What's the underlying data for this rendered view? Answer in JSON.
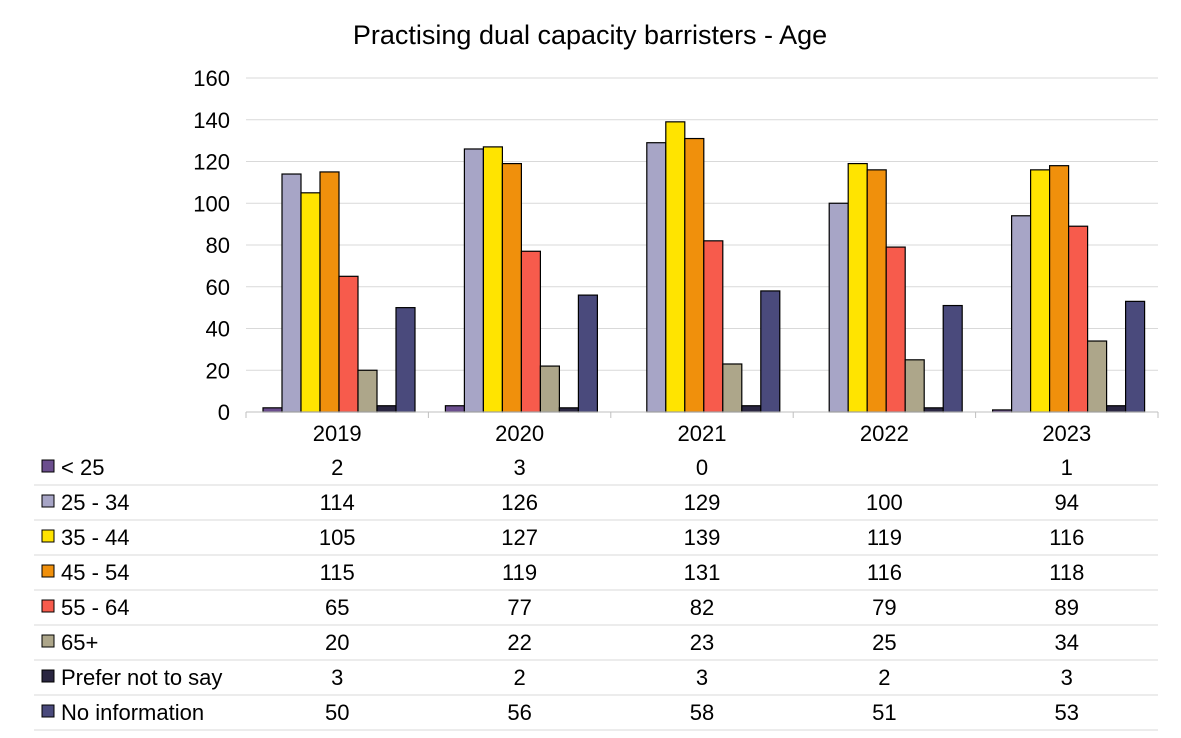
{
  "chart_data": {
    "type": "bar",
    "title": "Practising dual capacity barristers - Age",
    "categories": [
      "2019",
      "2020",
      "2021",
      "2022",
      "2023"
    ],
    "ylim": [
      0,
      160
    ],
    "yticks": [
      0,
      20,
      40,
      60,
      80,
      100,
      120,
      140,
      160
    ],
    "grid": true,
    "legend": "data-table-below",
    "series": [
      {
        "name": "< 25",
        "color": "#6B4E8E",
        "values": [
          2,
          3,
          0,
          null,
          1
        ],
        "labels": [
          "2",
          "3",
          "0",
          "",
          "1"
        ]
      },
      {
        "name": "25 - 34",
        "color": "#A7A5C6",
        "values": [
          114,
          126,
          129,
          100,
          94
        ],
        "labels": [
          "114",
          "126",
          "129",
          "100",
          "94"
        ]
      },
      {
        "name": "35 - 44",
        "color": "#FFE400",
        "values": [
          105,
          127,
          139,
          119,
          116
        ],
        "labels": [
          "105",
          "127",
          "139",
          "119",
          "116"
        ]
      },
      {
        "name": "45 - 54",
        "color": "#F0900C",
        "values": [
          115,
          119,
          131,
          116,
          118
        ],
        "labels": [
          "115",
          "119",
          "131",
          "116",
          "118"
        ]
      },
      {
        "name": "55 - 64",
        "color": "#F75B4C",
        "values": [
          65,
          77,
          82,
          79,
          89
        ],
        "labels": [
          "65",
          "77",
          "82",
          "79",
          "89"
        ]
      },
      {
        "name": "65+",
        "color": "#ADA68A",
        "values": [
          20,
          22,
          23,
          25,
          34
        ],
        "labels": [
          "20",
          "22",
          "23",
          "25",
          "34"
        ]
      },
      {
        "name": "Prefer not to say",
        "color": "#2A2641",
        "values": [
          3,
          2,
          3,
          2,
          3
        ],
        "labels": [
          "3",
          "2",
          "3",
          "2",
          "3"
        ]
      },
      {
        "name": "No information",
        "color": "#4A4A7C",
        "values": [
          50,
          56,
          58,
          51,
          53
        ],
        "labels": [
          "50",
          "56",
          "58",
          "51",
          "53"
        ]
      }
    ]
  }
}
